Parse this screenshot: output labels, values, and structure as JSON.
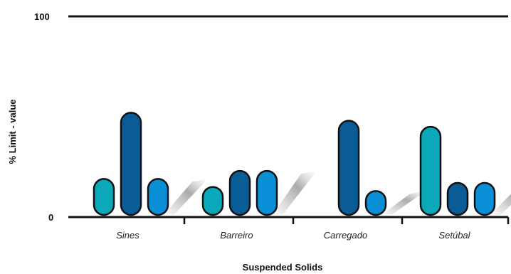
{
  "chart_data": {
    "type": "bar",
    "title": "",
    "xlabel": "Suspended Solids",
    "ylabel": "% Limit - value",
    "ylim": [
      0,
      100
    ],
    "yticks": [
      "0",
      "100"
    ],
    "grid": false,
    "categories": [
      "Sines",
      "Barreiro",
      "Carregado",
      "Setúbal"
    ],
    "series": [
      {
        "color": "#0aa8b8",
        "values": [
          19,
          15,
          null,
          45
        ]
      },
      {
        "color": "#0a5c96",
        "values": [
          52,
          23,
          48,
          17
        ]
      },
      {
        "color": "#0a8fd6",
        "values": [
          19,
          23,
          13,
          17
        ]
      }
    ]
  }
}
